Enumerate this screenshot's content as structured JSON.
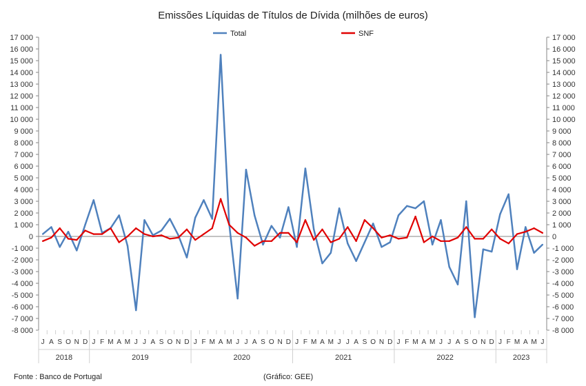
{
  "chart_data": {
    "type": "line",
    "title": "Emissões Líquidas de Títulos de Dívida (milhões de euros)",
    "source": "Fonte : Banco de Portugal",
    "credit": "(Gráfico: GEE)",
    "ylim": [
      -8000,
      17000
    ],
    "yticks": [
      "17 000",
      "16 000",
      "15 000",
      "14 000",
      "13 000",
      "12 000",
      "11 000",
      "10 000",
      "9 000",
      "8 000",
      "7 000",
      "6 000",
      "5 000",
      "4 000",
      "3 000",
      "2 000",
      "1 000",
      "0",
      "-1 000",
      "-2 000",
      "-3 000",
      "-4 000",
      "-5 000",
      "-6 000",
      "-7 000",
      "-8 000"
    ],
    "legend_position": "top-center",
    "grid": false,
    "x": [
      "J",
      "A",
      "S",
      "O",
      "N",
      "D",
      "J",
      "F",
      "M",
      "A",
      "M",
      "J",
      "J",
      "A",
      "S",
      "O",
      "N",
      "D",
      "J",
      "F",
      "M",
      "A",
      "M",
      "J",
      "J",
      "A",
      "S",
      "O",
      "N",
      "D",
      "J",
      "F",
      "M",
      "A",
      "M",
      "J",
      "J",
      "A",
      "S",
      "O",
      "N",
      "D",
      "J",
      "F",
      "M",
      "A",
      "M",
      "J",
      "J",
      "A",
      "S",
      "O",
      "N",
      "D",
      "J",
      "F",
      "M",
      "A",
      "M",
      "J"
    ],
    "years": [
      {
        "label": "2018",
        "start": 0,
        "count": 6
      },
      {
        "label": "2019",
        "start": 6,
        "count": 12
      },
      {
        "label": "2020",
        "start": 18,
        "count": 12
      },
      {
        "label": "2021",
        "start": 30,
        "count": 12
      },
      {
        "label": "2022",
        "start": 42,
        "count": 12
      },
      {
        "label": "2023",
        "start": 54,
        "count": 6
      }
    ],
    "series": [
      {
        "name": "Total",
        "color": "#4f81bd",
        "values": [
          200,
          800,
          -900,
          400,
          -1200,
          1000,
          3100,
          300,
          700,
          1800,
          -800,
          -6300,
          1400,
          100,
          500,
          1500,
          100,
          -1800,
          1600,
          3100,
          1500,
          15500,
          1100,
          -5300,
          5700,
          1800,
          -700,
          900,
          -100,
          2500,
          -900,
          5800,
          600,
          -2300,
          -1400,
          2400,
          -600,
          -2100,
          -500,
          1100,
          -900,
          -500,
          1800,
          2600,
          2400,
          3000,
          -700,
          1400,
          -2600,
          -4100,
          3000,
          -6900,
          -1100,
          -1300,
          1900,
          3600,
          -2800,
          800,
          -1400,
          -700
        ]
      },
      {
        "name": "SNF",
        "color": "#e00000",
        "values": [
          -400,
          -100,
          700,
          -200,
          -300,
          500,
          200,
          200,
          700,
          -500,
          0,
          700,
          200,
          0,
          100,
          -200,
          -100,
          600,
          -300,
          200,
          700,
          3200,
          1000,
          300,
          -100,
          -800,
          -400,
          -400,
          300,
          300,
          -500,
          1400,
          -300,
          600,
          -500,
          -200,
          800,
          -400,
          1400,
          700,
          -100,
          100,
          -200,
          -100,
          1700,
          -500,
          0,
          -400,
          -400,
          -100,
          800,
          -200,
          -200,
          600,
          -200,
          -600,
          200,
          400,
          700,
          300
        ]
      }
    ]
  }
}
